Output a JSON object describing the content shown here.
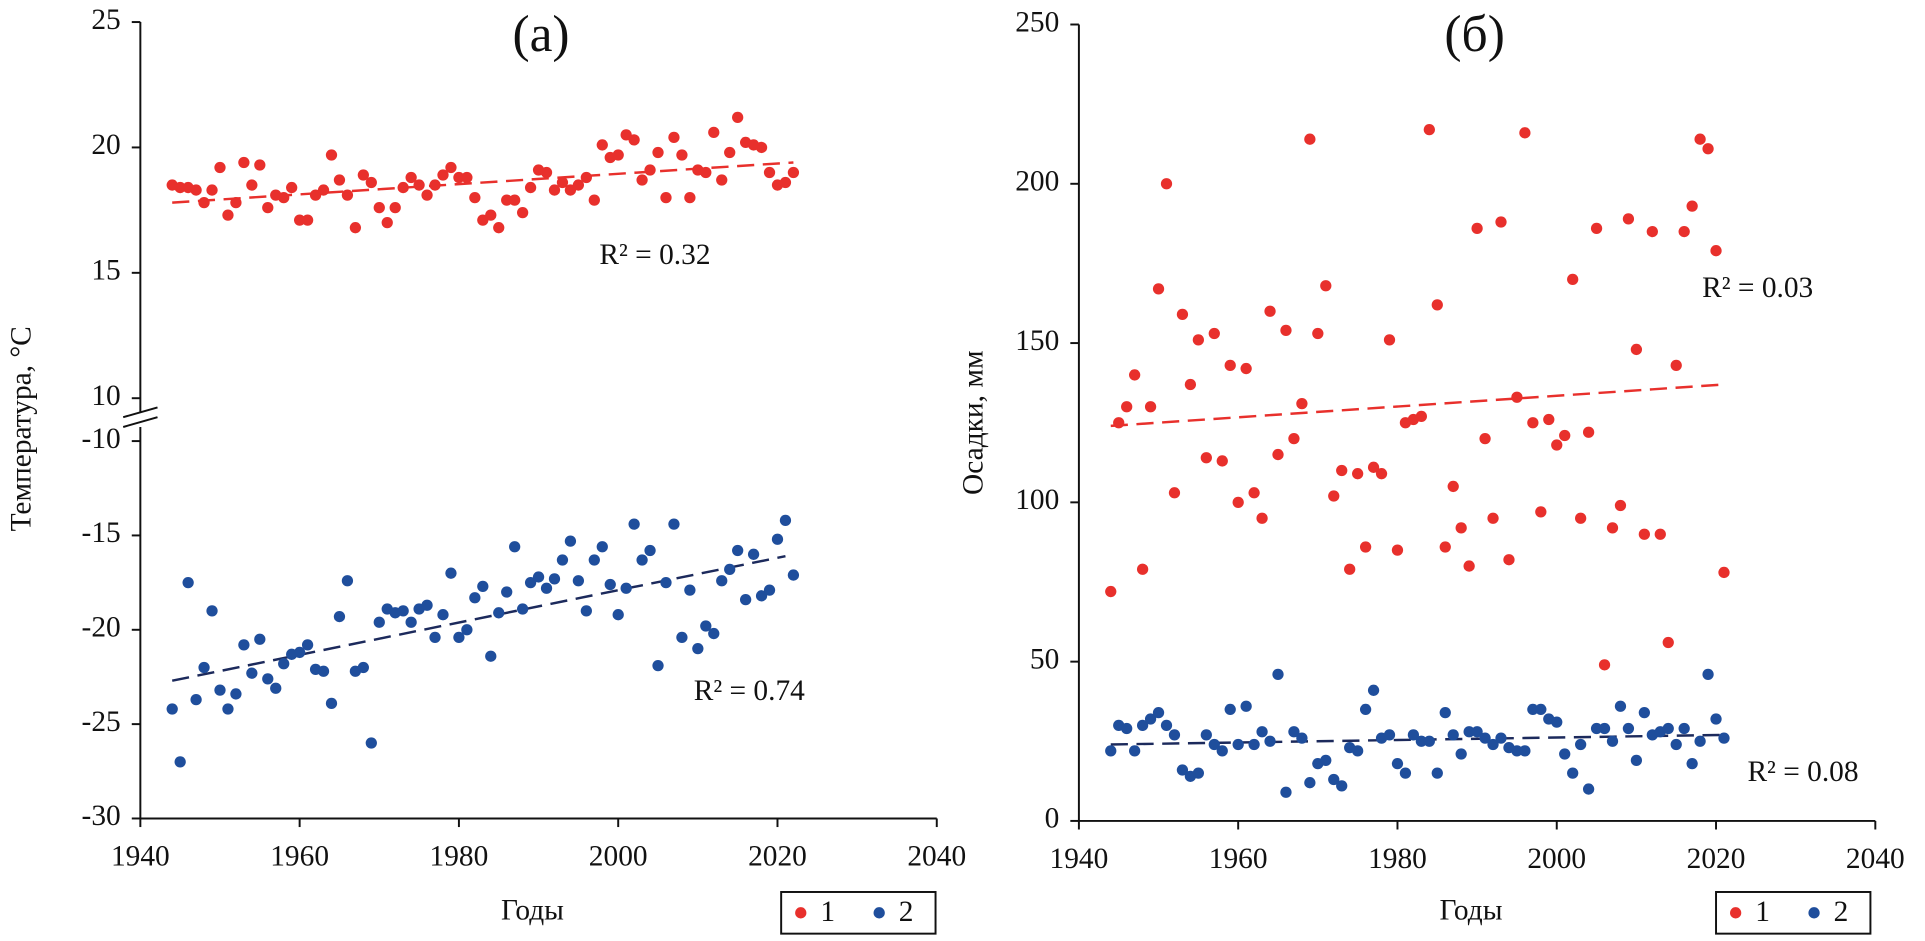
{
  "chart_data": [
    {
      "type": "scatter",
      "title": "(а)",
      "xlabel": "Годы",
      "ylabel": "Температура, °C",
      "xlim": [
        1940,
        2040
      ],
      "xticks": [
        1940,
        1960,
        1980,
        2000,
        2020,
        2040
      ],
      "ylim": [
        -30,
        25
      ],
      "axis_break": [
        -10,
        10
      ],
      "yticks": [
        -30,
        -25,
        -20,
        -15,
        -10,
        10,
        15,
        20,
        25
      ],
      "x": [
        1944,
        1945,
        1946,
        1947,
        1948,
        1949,
        1950,
        1951,
        1952,
        1953,
        1954,
        1955,
        1956,
        1957,
        1958,
        1959,
        1960,
        1961,
        1962,
        1963,
        1964,
        1965,
        1966,
        1967,
        1968,
        1969,
        1970,
        1971,
        1972,
        1973,
        1974,
        1975,
        1976,
        1977,
        1978,
        1979,
        1980,
        1981,
        1982,
        1983,
        1984,
        1985,
        1986,
        1987,
        1988,
        1989,
        1990,
        1991,
        1992,
        1993,
        1994,
        1995,
        1996,
        1997,
        1998,
        1999,
        2000,
        2001,
        2002,
        2003,
        2004,
        2005,
        2006,
        2007,
        2008,
        2009,
        2010,
        2011,
        2012,
        2013,
        2014,
        2015,
        2016,
        2017,
        2018,
        2019,
        2020,
        2021,
        2022
      ],
      "series": [
        {
          "name": "1",
          "color": "#e8302c",
          "r2_label": "R² = 0.32",
          "values": [
            18.5,
            18.4,
            18.4,
            18.3,
            17.8,
            18.3,
            19.2,
            17.3,
            17.8,
            19.4,
            18.5,
            19.3,
            17.6,
            18.1,
            18.0,
            18.4,
            17.1,
            17.1,
            18.1,
            18.3,
            19.7,
            18.7,
            18.1,
            16.8,
            18.9,
            18.6,
            17.6,
            17.0,
            17.6,
            18.4,
            18.8,
            18.5,
            18.1,
            18.5,
            18.9,
            19.2,
            18.8,
            18.8,
            18.0,
            17.1,
            17.3,
            16.8,
            17.9,
            17.9,
            17.4,
            18.4,
            19.1,
            19.0,
            18.3,
            18.6,
            18.3,
            18.5,
            18.8,
            17.9,
            20.1,
            19.6,
            19.7,
            20.5,
            20.3,
            18.7,
            19.1,
            19.8,
            18.0,
            20.4,
            19.7,
            18.0,
            19.1,
            19.0,
            20.6,
            18.7,
            19.8,
            21.2,
            20.2,
            20.1,
            20.0,
            19.0,
            18.5,
            18.6,
            19.0
          ],
          "trend": {
            "color": "#e8302c",
            "x": [
              1944,
              2022
            ],
            "values": [
              17.8,
              19.4
            ]
          }
        },
        {
          "name": "2",
          "color": "#1f4e9c",
          "r2_label": "R² = 0.74",
          "values": [
            -24.2,
            -27.0,
            -17.5,
            -23.7,
            -22.0,
            -19.0,
            -23.2,
            -24.2,
            -23.4,
            -20.8,
            -22.3,
            -20.5,
            -22.6,
            -23.1,
            -21.8,
            -21.3,
            -21.2,
            -20.8,
            -22.1,
            -22.2,
            -23.9,
            -19.3,
            -17.4,
            -22.2,
            -22.0,
            -26.0,
            -19.6,
            -18.9,
            -19.1,
            -19.0,
            -19.6,
            -18.9,
            -18.7,
            -20.4,
            -19.2,
            -17.0,
            -20.4,
            -20.0,
            -18.3,
            -17.7,
            -21.4,
            -19.1,
            -18.0,
            -15.6,
            -18.9,
            -17.5,
            -17.2,
            -17.8,
            -17.3,
            -16.3,
            -15.3,
            -17.4,
            -19.0,
            -16.3,
            -15.6,
            -17.6,
            -19.2,
            -17.8,
            -14.4,
            -16.3,
            -15.8,
            -21.9,
            -17.5,
            -14.4,
            -20.4,
            -17.9,
            -21.0,
            -19.8,
            -20.2,
            -17.4,
            -16.8,
            -15.8,
            -18.4,
            -16.0,
            -18.2,
            -17.9,
            -15.2,
            -14.2,
            -17.1
          ],
          "trend": {
            "color": "#1c2a5c",
            "x": [
              1944,
              2021
            ],
            "values": [
              -22.7,
              -16.1
            ]
          }
        }
      ]
    },
    {
      "type": "scatter",
      "title": "(б)",
      "xlabel": "Годы",
      "ylabel": "Осадки, мм",
      "xlim": [
        1940,
        2040
      ],
      "xticks": [
        1940,
        1960,
        1980,
        2000,
        2020,
        2040
      ],
      "ylim": [
        0,
        250
      ],
      "yticks": [
        0,
        50,
        100,
        150,
        200,
        250
      ],
      "x": [
        1944,
        1945,
        1946,
        1947,
        1948,
        1949,
        1950,
        1951,
        1952,
        1953,
        1954,
        1955,
        1956,
        1957,
        1958,
        1959,
        1960,
        1961,
        1962,
        1963,
        1964,
        1965,
        1966,
        1967,
        1968,
        1969,
        1970,
        1971,
        1972,
        1973,
        1974,
        1975,
        1976,
        1977,
        1978,
        1979,
        1980,
        1981,
        1982,
        1983,
        1984,
        1985,
        1986,
        1987,
        1988,
        1989,
        1990,
        1991,
        1992,
        1993,
        1994,
        1995,
        1996,
        1997,
        1998,
        1999,
        2000,
        2001,
        2002,
        2003,
        2004,
        2005,
        2006,
        2007,
        2008,
        2009,
        2010,
        2011,
        2012,
        2013,
        2014,
        2015,
        2016,
        2017,
        2018,
        2019,
        2020,
        2021
      ],
      "series": [
        {
          "name": "1",
          "color": "#e8302c",
          "r2_label": "R² = 0.03",
          "values": [
            72,
            125,
            130,
            140,
            79,
            130,
            167,
            200,
            103,
            159,
            137,
            151,
            114,
            153,
            113,
            143,
            100,
            142,
            103,
            95,
            160,
            115,
            154,
            120,
            131,
            214,
            153,
            168,
            102,
            110,
            79,
            109,
            86,
            111,
            109,
            151,
            85,
            125,
            126,
            127,
            217,
            162,
            86,
            105,
            92,
            80,
            186,
            120,
            95,
            188,
            82,
            133,
            216,
            125,
            97,
            126,
            118,
            121,
            170,
            95,
            122,
            186,
            49,
            92,
            99,
            189,
            148,
            90,
            185,
            90,
            56,
            143,
            185,
            193,
            214,
            211,
            179,
            78
          ],
          "trend": {
            "color": "#e8302c",
            "x": [
              1944,
              2021
            ],
            "values": [
              124,
              137
            ]
          }
        },
        {
          "name": "2",
          "color": "#1f4e9c",
          "r2_label": "R² = 0.08",
          "values": [
            22,
            30,
            29,
            22,
            30,
            32,
            34,
            30,
            27,
            16,
            14,
            15,
            27,
            24,
            22,
            35,
            24,
            36,
            24,
            28,
            25,
            46,
            9,
            28,
            26,
            12,
            18,
            19,
            13,
            11,
            23,
            22,
            35,
            41,
            26,
            27,
            18,
            15,
            27,
            25,
            25,
            15,
            34,
            27,
            21,
            28,
            28,
            26,
            24,
            26,
            23,
            22,
            22,
            35,
            35,
            32,
            31,
            21,
            15,
            24,
            10,
            29,
            29,
            25,
            36,
            29,
            19,
            34,
            27,
            28,
            29,
            24,
            29,
            18,
            25,
            46,
            32,
            26
          ],
          "trend": {
            "color": "#1c2a5c",
            "x": [
              1944,
              2021
            ],
            "values": [
              24,
              27
            ]
          }
        }
      ]
    }
  ]
}
